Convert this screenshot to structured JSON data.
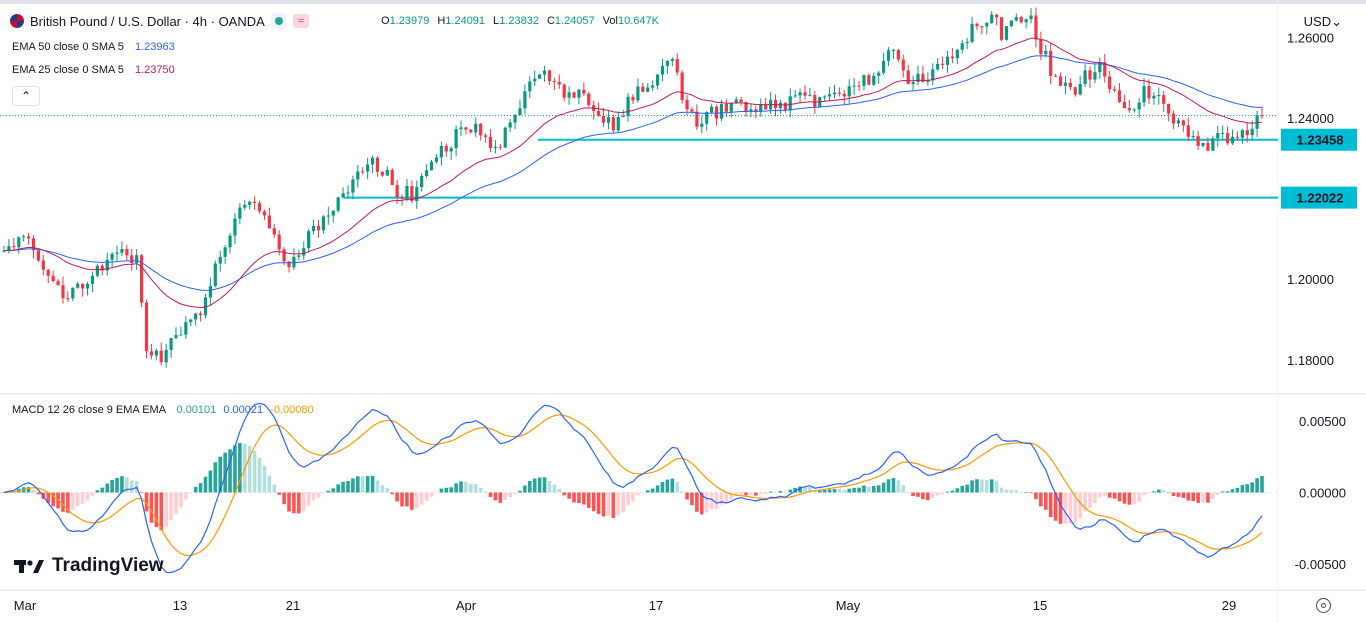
{
  "header": {
    "title": "British Pound / U.S. Dollar · 4h · OANDA",
    "flag_icon": "gbp-usd-flag-icon",
    "ohlc": [
      {
        "label": "O",
        "value": "1.23979"
      },
      {
        "label": "H",
        "value": "1.24091"
      },
      {
        "label": "L",
        "value": "1.23832"
      },
      {
        "label": "C",
        "value": "1.24057"
      },
      {
        "label": "Vol",
        "value": "10.647K"
      }
    ],
    "currency": "USD"
  },
  "indicators": {
    "ema50": {
      "label": "EMA 50 close 0 SMA 5",
      "value": "1.23963",
      "color": "#2962ff"
    },
    "ema25": {
      "label": "EMA 25 close 0 SMA 5",
      "value": "1.23750",
      "color": "#c2185b"
    },
    "macd": {
      "label": "MACD 12 26 close 9 EMA EMA",
      "hist": "0.00101",
      "macd": "0.00021",
      "signal": "-0.00080",
      "hist_color": "#26a69a",
      "macd_color": "#2962ff",
      "signal_color": "#ff9800"
    }
  },
  "brand": "TradingView",
  "chart_data": [
    {
      "type": "candlestick",
      "title": "British Pound / U.S. Dollar · 4h · OANDA",
      "x_tick_labels": [
        "Mar",
        "13",
        "21",
        "Apr",
        "17",
        "May",
        "15",
        "29"
      ],
      "y_tick_labels": [
        "1.26000",
        "1.24000",
        "1.20000",
        "1.18000"
      ],
      "ylim": [
        1.172,
        1.268
      ],
      "horizontal_levels": [
        {
          "label": "1.23458",
          "value": 1.23458,
          "color": "#00bcd4"
        },
        {
          "label": "1.22022",
          "value": 1.22022,
          "color": "#00bcd4"
        }
      ],
      "last_price": 1.24057,
      "close_path": [
        [
          0,
          1.206
        ],
        [
          4,
          1.212
        ],
        [
          8,
          1.204
        ],
        [
          12,
          1.196
        ],
        [
          16,
          1.199
        ],
        [
          20,
          1.203
        ],
        [
          24,
          1.206
        ],
        [
          27,
          1.205
        ],
        [
          29,
          1.183
        ],
        [
          32,
          1.181
        ],
        [
          34,
          1.184
        ],
        [
          37,
          1.189
        ],
        [
          40,
          1.193
        ],
        [
          43,
          1.203
        ],
        [
          46,
          1.212
        ],
        [
          49,
          1.219
        ],
        [
          53,
          1.217
        ],
        [
          56,
          1.207
        ],
        [
          58,
          1.203
        ],
        [
          61,
          1.209
        ],
        [
          64,
          1.213
        ],
        [
          68,
          1.22
        ],
        [
          72,
          1.226
        ],
        [
          75,
          1.229
        ],
        [
          78,
          1.226
        ],
        [
          80,
          1.222
        ],
        [
          83,
          1.221
        ],
        [
          86,
          1.228
        ],
        [
          90,
          1.233
        ],
        [
          94,
          1.238
        ],
        [
          97,
          1.236
        ],
        [
          100,
          1.231
        ],
        [
          103,
          1.238
        ],
        [
          106,
          1.247
        ],
        [
          109,
          1.251
        ],
        [
          112,
          1.248
        ],
        [
          115,
          1.246
        ],
        [
          118,
          1.245
        ],
        [
          121,
          1.242
        ],
        [
          124,
          1.237
        ],
        [
          127,
          1.244
        ],
        [
          130,
          1.247
        ],
        [
          133,
          1.251
        ],
        [
          136,
          1.253
        ],
        [
          138,
          1.246
        ],
        [
          141,
          1.239
        ],
        [
          144,
          1.241
        ],
        [
          147,
          1.242
        ],
        [
          150,
          1.244
        ],
        [
          153,
          1.242
        ],
        [
          156,
          1.244
        ],
        [
          159,
          1.242
        ],
        [
          162,
          1.247
        ],
        [
          165,
          1.244
        ],
        [
          168,
          1.246
        ],
        [
          171,
          1.245
        ],
        [
          174,
          1.248
        ],
        [
          177,
          1.25
        ],
        [
          180,
          1.257
        ],
        [
          183,
          1.251
        ],
        [
          186,
          1.249
        ],
        [
          189,
          1.252
        ],
        [
          192,
          1.255
        ],
        [
          195,
          1.259
        ],
        [
          198,
          1.264
        ],
        [
          201,
          1.265
        ],
        [
          203,
          1.261
        ],
        [
          205,
          1.264
        ],
        [
          207,
          1.262
        ],
        [
          209,
          1.264
        ],
        [
          211,
          1.257
        ],
        [
          214,
          1.25
        ],
        [
          217,
          1.246
        ],
        [
          220,
          1.25
        ],
        [
          223,
          1.252
        ],
        [
          226,
          1.247
        ],
        [
          229,
          1.243
        ],
        [
          232,
          1.246
        ],
        [
          235,
          1.245
        ],
        [
          238,
          1.239
        ],
        [
          241,
          1.236
        ],
        [
          244,
          1.232
        ],
        [
          246,
          1.235
        ],
        [
          249,
          1.235
        ],
        [
          252,
          1.236
        ],
        [
          254,
          1.238
        ],
        [
          255,
          1.24
        ],
        [
          256,
          1.2406
        ]
      ],
      "ema25_last": 1.2375,
      "ema50_last": 1.23963
    },
    {
      "type": "macd",
      "title": "MACD 12 26 close 9 EMA EMA",
      "y_tick_labels": [
        "0.00500",
        "0.00000",
        "-0.00500"
      ],
      "ylim": [
        -0.0068,
        0.0068
      ],
      "macd_last": 0.00021,
      "signal_last": -0.0008,
      "hist_last": 0.00101
    }
  ]
}
